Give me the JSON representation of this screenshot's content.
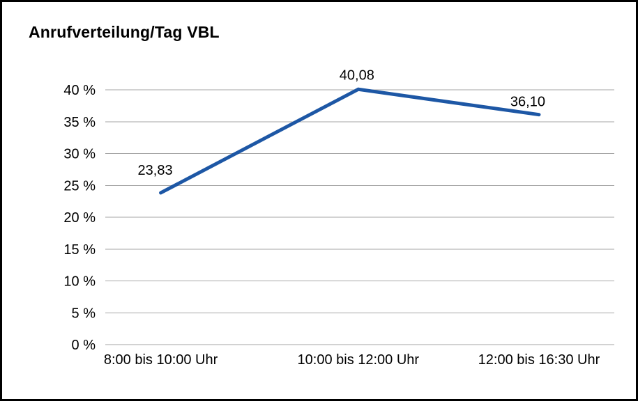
{
  "title": "Anrufverteilung/Tag VBL",
  "chart_data": {
    "type": "line",
    "title": "Anrufverteilung/Tag VBL",
    "categories": [
      "8:00 bis 10:00 Uhr",
      "10:00 bis 12:00 Uhr",
      "12:00 bis 16:30 Uhr"
    ],
    "values": [
      23.83,
      40.08,
      36.1
    ],
    "value_labels": [
      "23,83",
      "40,08",
      "36,10"
    ],
    "xlabel": "",
    "ylabel": "",
    "ylim": [
      0,
      40
    ],
    "ytick_step": 5,
    "ytick_labels": [
      "0 %",
      "5 %",
      "10 %",
      "15 %",
      "20 %",
      "25 %",
      "30 %",
      "35 %",
      "40 %"
    ],
    "grid": true,
    "legend": "none",
    "line_color": "#1d57a5",
    "grid_color": "#a6a6a6",
    "text_color": "#000000"
  }
}
